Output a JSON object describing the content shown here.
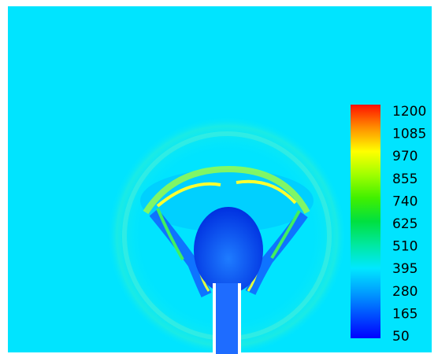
{
  "chart_data": {
    "type": "contour",
    "colorbar": {
      "lim": [
        50,
        1200
      ],
      "ticks": [
        50,
        165,
        280,
        395,
        510,
        625,
        740,
        855,
        970,
        1085,
        1200
      ],
      "colors": [
        "#0000ff",
        "#0050ff",
        "#00a0ff",
        "#00e8ff",
        "#00e8a0",
        "#00e040",
        "#40f000",
        "#a0ff00",
        "#ffff00",
        "#ff9000",
        "#ff1000"
      ]
    }
  }
}
